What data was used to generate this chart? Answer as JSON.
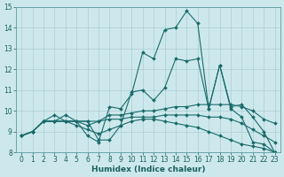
{
  "title": "",
  "xlabel": "Humidex (Indice chaleur)",
  "xlim": [
    -0.5,
    23.5
  ],
  "ylim": [
    8,
    15
  ],
  "yticks": [
    8,
    9,
    10,
    11,
    12,
    13,
    14,
    15
  ],
  "xticks": [
    0,
    1,
    2,
    3,
    4,
    5,
    6,
    7,
    8,
    9,
    10,
    11,
    12,
    13,
    14,
    15,
    16,
    17,
    18,
    19,
    20,
    21,
    22,
    23
  ],
  "bg_color": "#cde8ec",
  "line_color": "#1a6b6b",
  "grid_color": "#aacdd4",
  "series": [
    [
      8.8,
      9.0,
      9.5,
      9.5,
      9.8,
      9.5,
      8.8,
      8.5,
      10.2,
      10.1,
      10.8,
      12.8,
      12.5,
      13.9,
      14.0,
      14.8,
      14.2,
      10.1,
      12.2,
      10.1,
      9.7,
      8.5,
      8.4,
      8.0
    ],
    [
      8.8,
      9.0,
      9.5,
      9.5,
      9.5,
      9.5,
      9.5,
      8.6,
      8.6,
      9.3,
      10.9,
      11.0,
      10.5,
      11.1,
      12.5,
      12.4,
      12.5,
      10.1,
      12.2,
      10.2,
      10.3,
      9.7,
      9.0,
      8.0
    ],
    [
      8.8,
      9.0,
      9.5,
      9.5,
      9.5,
      9.5,
      9.3,
      9.5,
      9.8,
      9.8,
      9.9,
      10.0,
      10.0,
      10.1,
      10.2,
      10.2,
      10.3,
      10.3,
      10.3,
      10.3,
      10.2,
      10.0,
      9.6,
      9.4
    ],
    [
      8.8,
      9.0,
      9.5,
      9.8,
      9.5,
      9.5,
      9.5,
      9.5,
      9.6,
      9.6,
      9.7,
      9.7,
      9.7,
      9.8,
      9.8,
      9.8,
      9.8,
      9.7,
      9.7,
      9.6,
      9.4,
      9.1,
      8.8,
      8.5
    ],
    [
      8.8,
      9.0,
      9.5,
      9.5,
      9.5,
      9.3,
      9.1,
      8.9,
      9.1,
      9.3,
      9.5,
      9.6,
      9.6,
      9.5,
      9.4,
      9.3,
      9.2,
      9.0,
      8.8,
      8.6,
      8.4,
      8.3,
      8.2,
      8.0
    ]
  ],
  "tick_fontsize": 5.5,
  "xlabel_fontsize": 6.5,
  "marker_size": 2.0,
  "linewidth": 0.8
}
